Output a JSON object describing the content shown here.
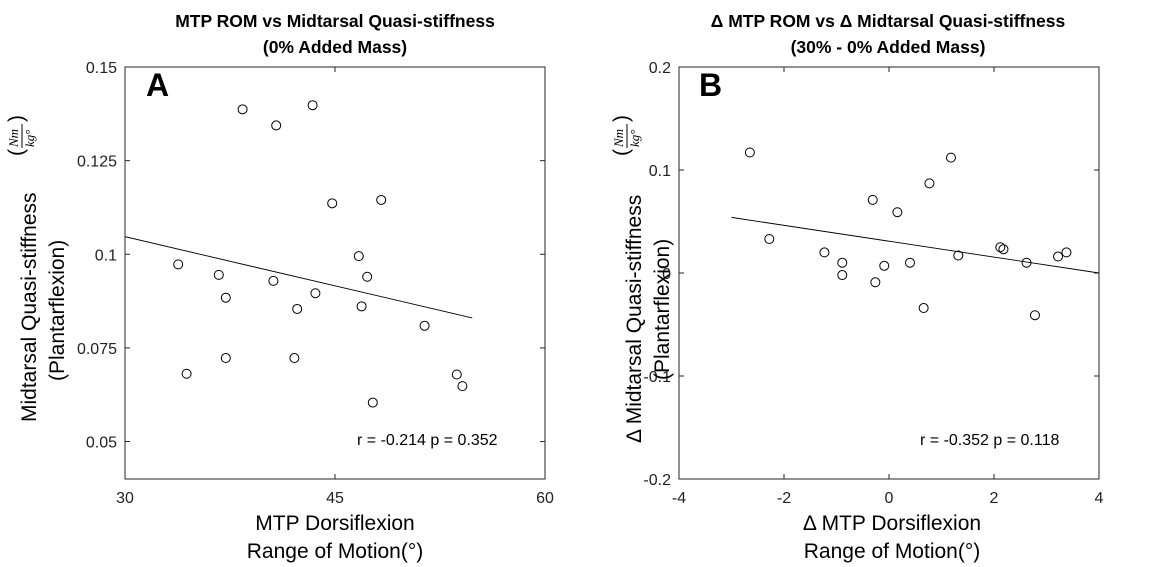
{
  "chart_data": [
    {
      "type": "scatter",
      "panel": "A",
      "title": [
        "MTP ROM vs Midtarsal Quasi-stiffness",
        "(0% Added Mass)"
      ],
      "xlabel": [
        "MTP Dorsiflexion",
        "Range of Motion(°)"
      ],
      "ylabel": [
        "Midtarsal Quasi-stiffness",
        "(Plantarflexion)"
      ],
      "ylabel_unit": {
        "num": "Nm",
        "den": "kg°"
      },
      "xlim": [
        30,
        60
      ],
      "ylim": [
        0.04,
        0.15
      ],
      "xticks": [
        30,
        45,
        60
      ],
      "xtick_labels": [
        "30",
        "45",
        "60"
      ],
      "yticks": [
        0.05,
        0.075,
        0.1,
        0.125,
        0.15
      ],
      "ytick_labels": [
        "0.05",
        "0.075",
        "0.1",
        "0.125",
        "0.15"
      ],
      "grid": false,
      "points": [
        {
          "x": 33.8,
          "y": 0.0973
        },
        {
          "x": 34.4,
          "y": 0.0681
        },
        {
          "x": 36.7,
          "y": 0.0945
        },
        {
          "x": 37.2,
          "y": 0.0884
        },
        {
          "x": 37.2,
          "y": 0.0723
        },
        {
          "x": 38.4,
          "y": 0.1387
        },
        {
          "x": 40.6,
          "y": 0.0929
        },
        {
          "x": 40.8,
          "y": 0.1344
        },
        {
          "x": 42.1,
          "y": 0.0723
        },
        {
          "x": 42.3,
          "y": 0.0854
        },
        {
          "x": 43.4,
          "y": 0.1398
        },
        {
          "x": 43.6,
          "y": 0.0896
        },
        {
          "x": 44.8,
          "y": 0.1136
        },
        {
          "x": 46.7,
          "y": 0.0995
        },
        {
          "x": 46.9,
          "y": 0.0861
        },
        {
          "x": 47.3,
          "y": 0.094
        },
        {
          "x": 47.7,
          "y": 0.0604
        },
        {
          "x": 48.3,
          "y": 0.1145
        },
        {
          "x": 51.4,
          "y": 0.0809
        },
        {
          "x": 53.7,
          "y": 0.0679
        },
        {
          "x": 54.1,
          "y": 0.0648
        }
      ],
      "fit_line": {
        "x": [
          30,
          54.8
        ],
        "y": [
          0.1047,
          0.083
        ]
      },
      "annotation": "r = -0.214 p = 0.352"
    },
    {
      "type": "scatter",
      "panel": "B",
      "title": [
        "Δ MTP ROM vs Δ Midtarsal Quasi-stiffness",
        "(30% - 0% Added Mass)"
      ],
      "xlabel": [
        "Δ MTP Dorsiflexion",
        "Range of Motion(°)"
      ],
      "ylabel": [
        "Δ Midtarsal Quasi-stiffness",
        "(Plantarflexion)"
      ],
      "ylabel_unit": {
        "num": "Nm",
        "den": "kg°"
      },
      "xlim": [
        -4,
        4
      ],
      "ylim": [
        -0.2,
        0.2
      ],
      "xticks": [
        -4,
        -2,
        0,
        2,
        4
      ],
      "xtick_labels": [
        "-4",
        "-2",
        "0",
        "2",
        "4"
      ],
      "yticks": [
        -0.2,
        -0.1,
        0,
        0.1,
        0.2
      ],
      "ytick_labels": [
        "-0.2",
        "-0.1",
        "0",
        "0.1",
        "0.2"
      ],
      "grid": false,
      "points": [
        {
          "x": -2.65,
          "y": 0.117
        },
        {
          "x": -2.28,
          "y": 0.033
        },
        {
          "x": -1.23,
          "y": 0.02
        },
        {
          "x": -0.89,
          "y": 0.01
        },
        {
          "x": -0.89,
          "y": -0.002
        },
        {
          "x": -0.31,
          "y": 0.071
        },
        {
          "x": -0.26,
          "y": -0.009
        },
        {
          "x": -0.09,
          "y": 0.007
        },
        {
          "x": 0.16,
          "y": 0.059
        },
        {
          "x": 0.4,
          "y": 0.01
        },
        {
          "x": 0.66,
          "y": -0.034
        },
        {
          "x": 0.77,
          "y": 0.087
        },
        {
          "x": 1.18,
          "y": 0.112
        },
        {
          "x": 1.32,
          "y": 0.017
        },
        {
          "x": 2.12,
          "y": 0.025
        },
        {
          "x": 2.18,
          "y": 0.023
        },
        {
          "x": 2.62,
          "y": 0.01
        },
        {
          "x": 2.78,
          "y": -0.041
        },
        {
          "x": 3.22,
          "y": 0.016
        },
        {
          "x": 3.38,
          "y": 0.02
        }
      ],
      "fit_line": {
        "x": [
          -3,
          4
        ],
        "y": [
          0.054,
          0.0
        ]
      },
      "annotation": "r = -0.352 p = 0.118"
    }
  ]
}
